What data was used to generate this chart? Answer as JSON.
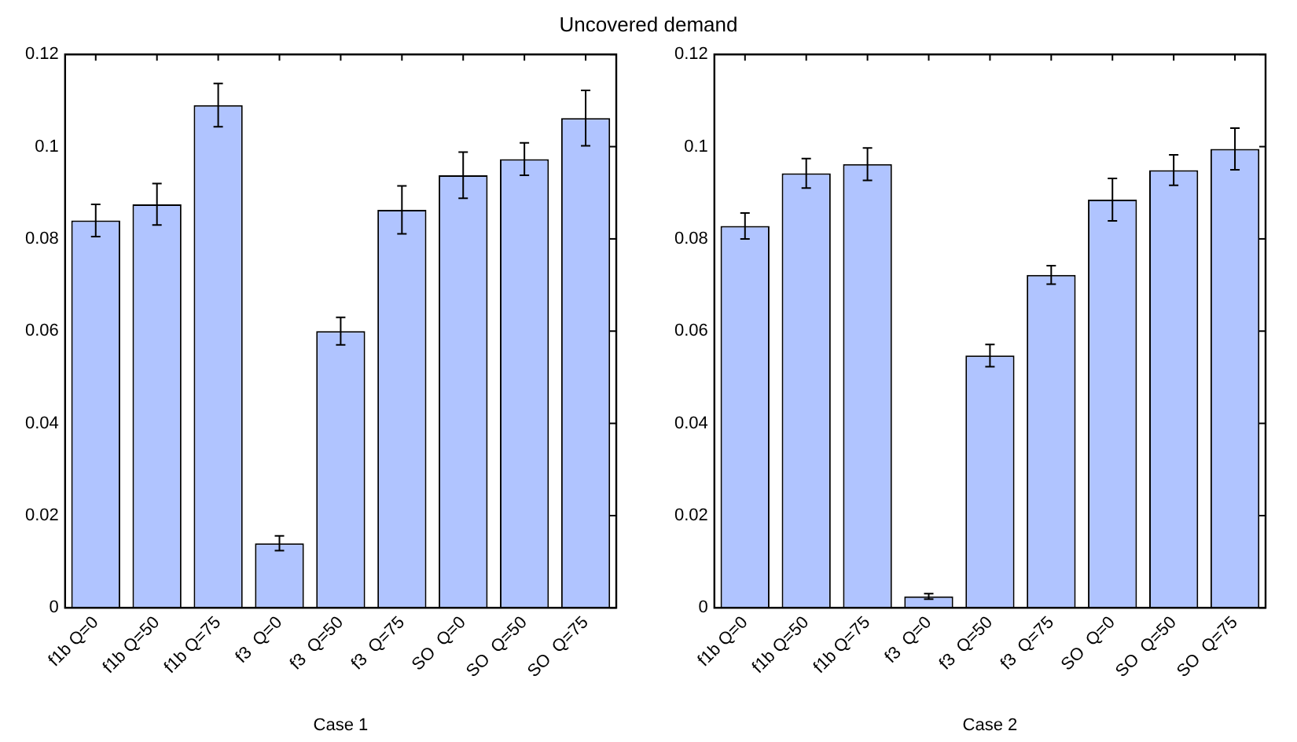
{
  "chart_data": [
    {
      "type": "bar",
      "title": "Uncovered demand",
      "xlabel": "Case 1",
      "categories": [
        "f1b Q=0",
        "f1b Q=50",
        "f1b Q=75",
        "f3  Q=0",
        "f3  Q=50",
        "f3  Q=75",
        "SO  Q=0",
        "SO  Q=50",
        "SO  Q=75"
      ],
      "values": [
        0.084,
        0.0875,
        0.109,
        0.014,
        0.06,
        0.0863,
        0.0938,
        0.0973,
        0.1062
      ],
      "errors": [
        0.0035,
        0.0045,
        0.0047,
        0.0016,
        0.003,
        0.0052,
        0.005,
        0.0035,
        0.006
      ],
      "color": "#b0c4ff",
      "ylim": [
        0,
        0.12
      ],
      "yticks": [
        0,
        0.02,
        0.04,
        0.06,
        0.08,
        0.1,
        0.12
      ],
      "grid": false,
      "legend": false
    },
    {
      "type": "bar",
      "xlabel": "Case 2",
      "categories": [
        "f1b Q=0",
        "f1b Q=50",
        "f1b Q=75",
        "f3  Q=0",
        "f3  Q=50",
        "f3  Q=75",
        "SO  Q=0",
        "SO  Q=50",
        "SO  Q=75"
      ],
      "values": [
        0.0828,
        0.0942,
        0.0962,
        0.0025,
        0.0547,
        0.0722,
        0.0885,
        0.0949,
        0.0995
      ],
      "errors": [
        0.0028,
        0.0032,
        0.0035,
        0.0006,
        0.0024,
        0.002,
        0.0046,
        0.0033,
        0.0045
      ],
      "color": "#b0c4ff",
      "ylim": [
        0,
        0.12
      ],
      "yticks": [
        0,
        0.02,
        0.04,
        0.06,
        0.08,
        0.1,
        0.12
      ],
      "grid": false,
      "legend": false
    }
  ]
}
